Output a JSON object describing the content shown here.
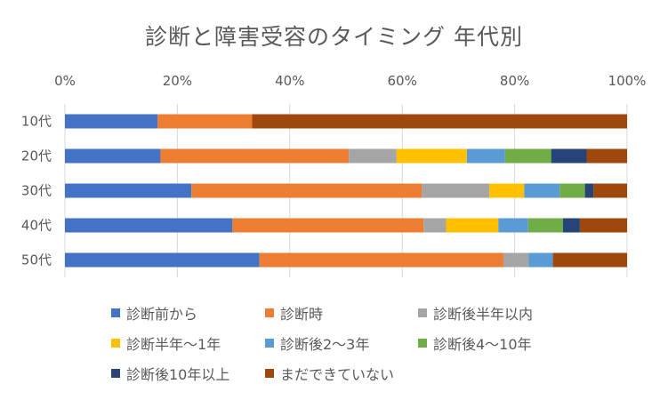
{
  "chart_data": {
    "type": "bar",
    "orientation": "horizontal-stacked-100",
    "title": "診断と障害受容のタイミング 年代別",
    "xlabel": "",
    "ylabel": "",
    "xlim": [
      0,
      100
    ],
    "x_ticks": [
      "0%",
      "20%",
      "40%",
      "60%",
      "80%",
      "100%"
    ],
    "grid": true,
    "legend_position": "bottom",
    "categories": [
      "10代",
      "20代",
      "30代",
      "40代",
      "50代"
    ],
    "series": [
      {
        "name": "診断前から",
        "color": "#4472C4",
        "values": [
          16.5,
          17.0,
          22.5,
          29.8,
          34.6
        ]
      },
      {
        "name": "診断時",
        "color": "#ED7D31",
        "values": [
          16.8,
          33.5,
          41.0,
          34.0,
          43.4
        ]
      },
      {
        "name": "診断後半年以内",
        "color": "#A5A5A5",
        "values": [
          0.0,
          8.5,
          12.0,
          4.0,
          4.5
        ]
      },
      {
        "name": "診断半年〜1年",
        "color": "#FFC000",
        "values": [
          0.0,
          12.5,
          6.2,
          9.3,
          0.0
        ]
      },
      {
        "name": "診断後2〜3年",
        "color": "#5B9BD5",
        "values": [
          0.0,
          6.8,
          6.3,
          5.3,
          4.3
        ]
      },
      {
        "name": "診断後4〜10年",
        "color": "#70AD47",
        "values": [
          0.0,
          8.2,
          4.5,
          6.2,
          0.0
        ]
      },
      {
        "name": "診断後10年以上",
        "color": "#264478",
        "values": [
          0.0,
          6.3,
          1.5,
          3.0,
          0.0
        ]
      },
      {
        "name": "まだできていない",
        "color": "#9E480E",
        "values": [
          66.7,
          7.2,
          6.0,
          8.4,
          13.2
        ]
      }
    ]
  }
}
